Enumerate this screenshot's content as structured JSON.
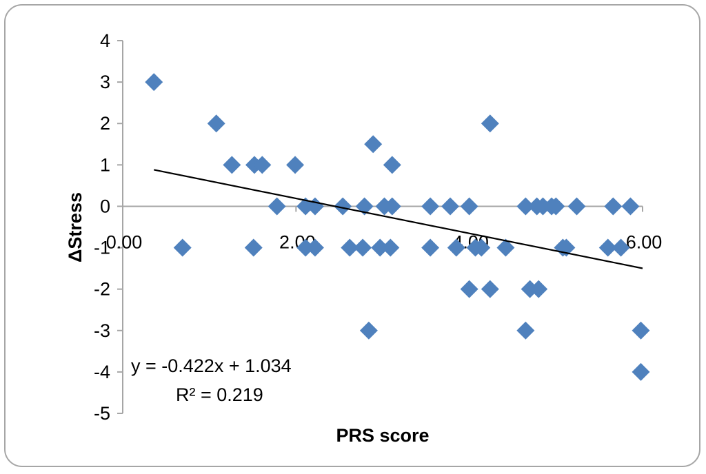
{
  "chart_data": {
    "type": "scatter",
    "title": "",
    "xlabel": "PRS score",
    "ylabel": "ΔStress",
    "xlim": [
      0,
      6
    ],
    "ylim": [
      -5,
      4
    ],
    "x_ticks": [
      0,
      2,
      4,
      6
    ],
    "x_tick_labels": [
      "0.00",
      "2.00",
      "4.00",
      "6.00"
    ],
    "y_ticks": [
      4,
      3,
      2,
      1,
      0,
      -1,
      -2,
      -3,
      -4,
      -5
    ],
    "y_tick_labels": [
      "4",
      "3",
      "2",
      "1",
      "0",
      "-1",
      "-2",
      "-3",
      "-4",
      "-5"
    ],
    "grid": false,
    "legend": "none",
    "marker_color": "#4f81bd",
    "trendline_color": "#000000",
    "axis_color": "#a6a6a6",
    "series": [
      {
        "name": "ΔStress",
        "points": [
          {
            "x": 0.36,
            "y": 3
          },
          {
            "x": 0.69,
            "y": -1
          },
          {
            "x": 1.08,
            "y": 2
          },
          {
            "x": 1.26,
            "y": 1
          },
          {
            "x": 1.52,
            "y": 1
          },
          {
            "x": 1.61,
            "y": 1
          },
          {
            "x": 1.51,
            "y": -1
          },
          {
            "x": 1.78,
            "y": 0
          },
          {
            "x": 1.99,
            "y": 1
          },
          {
            "x": 2.11,
            "y": 0
          },
          {
            "x": 2.22,
            "y": 0
          },
          {
            "x": 2.11,
            "y": -1
          },
          {
            "x": 2.22,
            "y": -1
          },
          {
            "x": 2.54,
            "y": 0
          },
          {
            "x": 2.79,
            "y": 0
          },
          {
            "x": 2.62,
            "y": -1
          },
          {
            "x": 2.77,
            "y": -1
          },
          {
            "x": 2.84,
            "y": -3
          },
          {
            "x": 2.89,
            "y": 1.5
          },
          {
            "x": 3.02,
            "y": 0
          },
          {
            "x": 3.11,
            "y": 0
          },
          {
            "x": 2.97,
            "y": -1
          },
          {
            "x": 3.09,
            "y": -1
          },
          {
            "x": 3.11,
            "y": 1
          },
          {
            "x": 3.55,
            "y": 0
          },
          {
            "x": 3.78,
            "y": 0
          },
          {
            "x": 4.0,
            "y": 0
          },
          {
            "x": 3.55,
            "y": -1
          },
          {
            "x": 3.85,
            "y": -1
          },
          {
            "x": 4.07,
            "y": -1
          },
          {
            "x": 4.14,
            "y": -1
          },
          {
            "x": 4.42,
            "y": -1
          },
          {
            "x": 4.0,
            "y": -2
          },
          {
            "x": 4.24,
            "y": -2
          },
          {
            "x": 4.24,
            "y": 2
          },
          {
            "x": 4.65,
            "y": 0
          },
          {
            "x": 4.78,
            "y": 0
          },
          {
            "x": 4.85,
            "y": 0
          },
          {
            "x": 4.95,
            "y": 0
          },
          {
            "x": 5.0,
            "y": 0
          },
          {
            "x": 5.24,
            "y": 0
          },
          {
            "x": 4.7,
            "y": -2
          },
          {
            "x": 4.8,
            "y": -2
          },
          {
            "x": 4.65,
            "y": -3
          },
          {
            "x": 5.08,
            "y": -1
          },
          {
            "x": 5.12,
            "y": -1
          },
          {
            "x": 5.6,
            "y": -1
          },
          {
            "x": 5.75,
            "y": -1
          },
          {
            "x": 5.66,
            "y": 0
          },
          {
            "x": 5.86,
            "y": 0
          },
          {
            "x": 5.98,
            "y": -3
          },
          {
            "x": 5.98,
            "y": -4
          }
        ]
      }
    ],
    "trendline": {
      "type": "linear",
      "slope": -0.422,
      "intercept": 1.034,
      "x_start": 0.36,
      "x_end": 6.0,
      "equation_label": "y = -0.422x + 1.034",
      "r2_label": "R² = 0.219"
    }
  }
}
